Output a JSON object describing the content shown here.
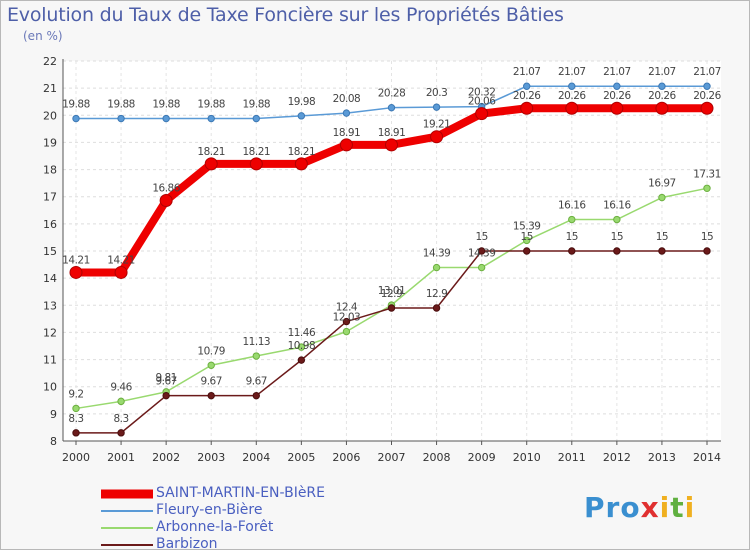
{
  "header": {
    "title": "Evolution du Taux de Taxe Foncière sur les Propriétés Bâties",
    "unit": "(en %)"
  },
  "logo": {
    "text": "Proxiti"
  },
  "chart_data": {
    "type": "line",
    "title": "Evolution du Taux de Taxe Foncière sur les Propriétés Bâties",
    "ylabel": "(en %)",
    "xlabel": "",
    "x": [
      "2000",
      "2001",
      "2002",
      "2003",
      "2004",
      "2005",
      "2006",
      "2007",
      "2008",
      "2009",
      "2010",
      "2011",
      "2012",
      "2013",
      "2014"
    ],
    "yticks": [
      "8",
      "9",
      "10",
      "11",
      "12",
      "13",
      "14",
      "15",
      "16",
      "17",
      "18",
      "19",
      "20",
      "21",
      "22"
    ],
    "ylim": [
      8,
      22
    ],
    "grid": true,
    "legend_position": "bottom-left",
    "series": [
      {
        "name": "SAINT-MARTIN-EN-BIèRE",
        "color": "#ee0000",
        "values": [
          14.21,
          14.21,
          16.86,
          18.21,
          18.21,
          18.21,
          18.91,
          18.91,
          19.21,
          20.06,
          20.26,
          20.26,
          20.26,
          20.26,
          20.26
        ],
        "labels": [
          "14.21",
          "14.21",
          "16.86",
          "18.21",
          "18.21",
          "18.21",
          "18.91",
          "18.91",
          "19.21",
          "20.06",
          "20.26",
          "20.26",
          "20.26",
          "20.26",
          "20.26"
        ]
      },
      {
        "name": "Fleury-en-Bière",
        "color": "#5a9ad6",
        "values": [
          19.88,
          19.88,
          19.88,
          19.88,
          19.88,
          19.98,
          20.08,
          20.28,
          20.3,
          20.32,
          21.07,
          21.07,
          21.07,
          21.07,
          21.07
        ],
        "labels": [
          "19.88",
          "19.88",
          "19.88",
          "19.88",
          "19.88",
          "19.98",
          "20.08",
          "20.28",
          "20.3",
          "20.32",
          "21.07",
          "21.07",
          "21.07",
          "21.07",
          "21.07"
        ]
      },
      {
        "name": "Arbonne-la-Forêt",
        "color": "#99d96f",
        "values": [
          9.2,
          9.46,
          9.81,
          10.79,
          11.13,
          11.46,
          12.03,
          13.01,
          14.39,
          14.39,
          15.39,
          16.16,
          16.16,
          16.97,
          17.31
        ],
        "labels": [
          "9.2",
          "9.46",
          "9.81",
          "10.79",
          "11.13",
          "11.46",
          "12.03",
          "13.01",
          "14.39",
          "14.39",
          "15.39",
          "16.16",
          "16.16",
          "16.97",
          "17.31"
        ]
      },
      {
        "name": "Barbizon",
        "color": "#6b1a1a",
        "values": [
          8.3,
          8.3,
          9.67,
          9.67,
          9.67,
          10.98,
          12.4,
          12.9,
          12.9,
          15,
          15,
          15,
          15,
          15,
          15
        ],
        "labels": [
          "8.3",
          "8.3",
          "9.67",
          "9.67",
          "9.67",
          "10.98",
          "12.4",
          "12.9",
          "12.9",
          "15",
          "15",
          "15",
          "15",
          "15",
          "15"
        ]
      }
    ]
  }
}
